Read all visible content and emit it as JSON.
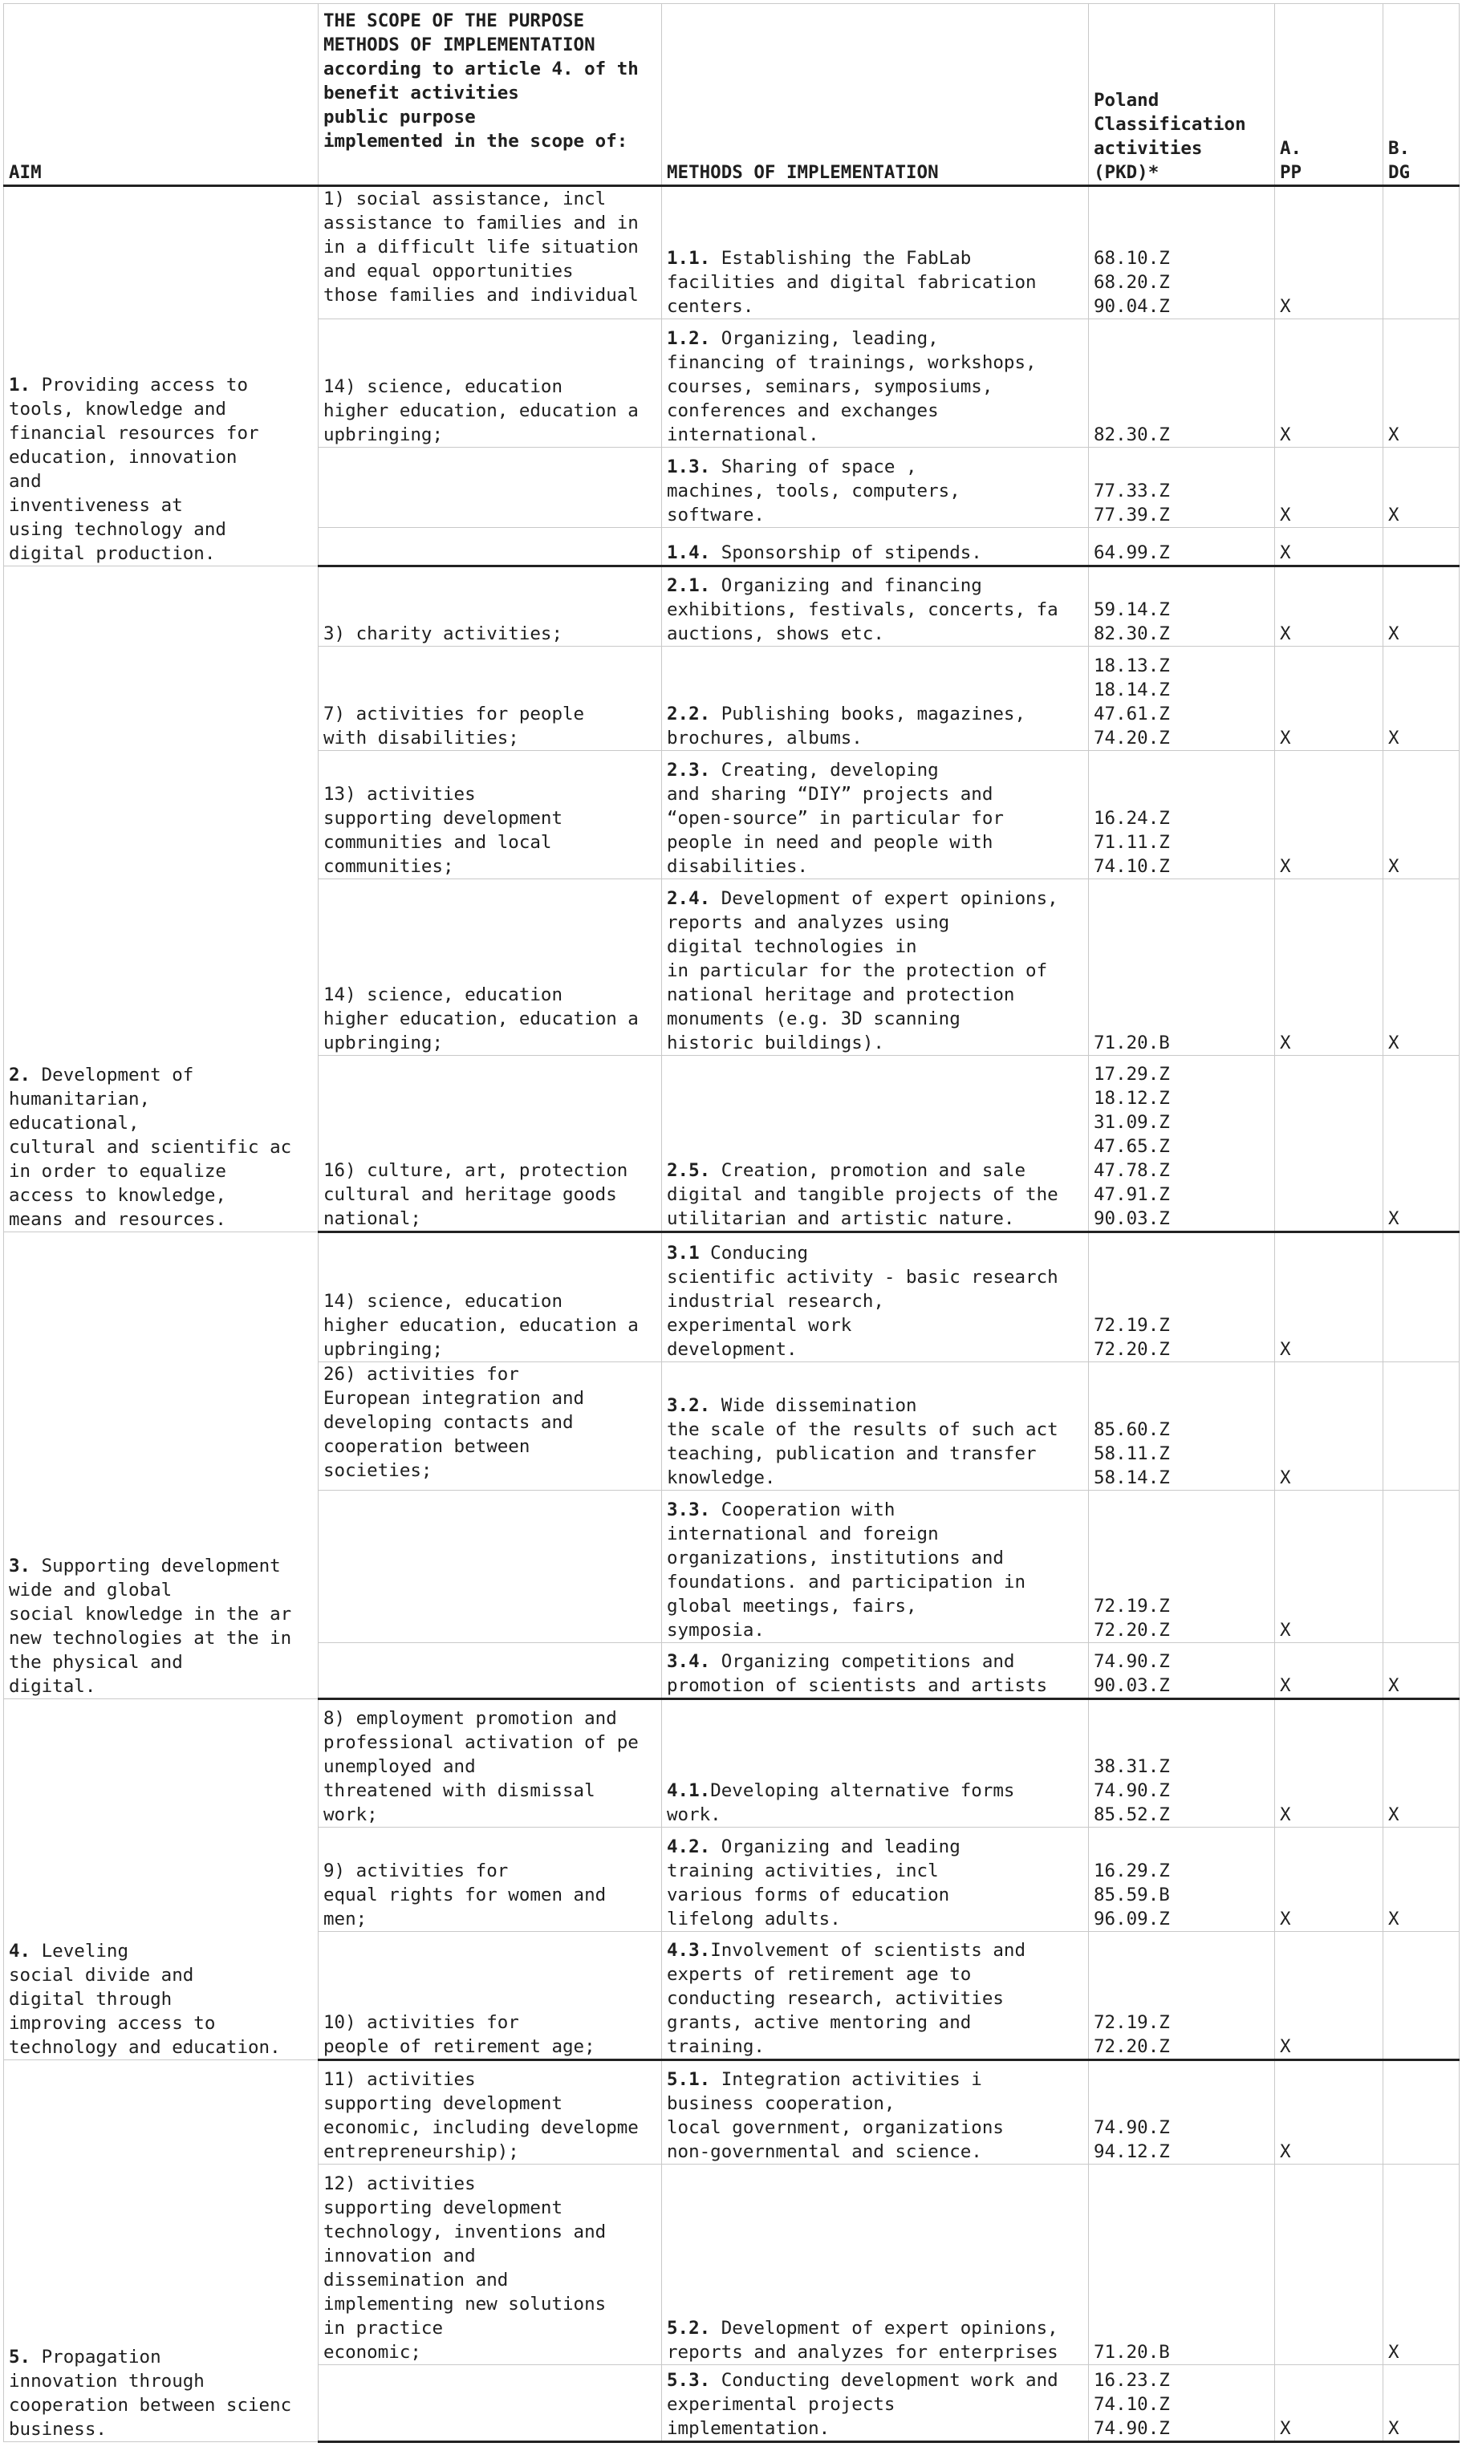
{
  "header": {
    "aim": "AIM",
    "scope": "THE SCOPE OF THE PURPOSE\nMETHODS OF IMPLEMENTATION\naccording to article 4. of th\nbenefit activities\npublic purpose\nimplemented in the scope of:",
    "methods": "METHODS OF IMPLEMENTATION",
    "pkd": "Poland\nClassification\nactivities\n(PKD)*",
    "pp": "A.\nPP",
    "dg": "B.\nDG"
  },
  "groups": [
    {
      "aim_num": "1.",
      "aim_text": " Providing access to\ntools, knowledge and\nfinancial resources for\neducation, innovation\nand\ninventiveness at\nusing technology and\ndigital production.",
      "rows": [
        {
          "scope": "1) social assistance, incl\nassistance to families and in\nin a difficult life situation\nand equal opportunities\nthose families and individual",
          "scope_top": true,
          "method_num": "1.1.",
          "method_text": " Establishing the FabLab\nfacilities and digital fabrication\ncenters.",
          "pkd": "68.10.Z\n68.20.Z\n90.04.Z",
          "pp": "X",
          "dg": ""
        },
        {
          "scope": "14) science, education\nhigher education, education a\nupbringing;",
          "method_num": "1.2.",
          "method_text": " Organizing, leading,\nfinancing of trainings, workshops,\ncourses, seminars, symposiums,\nconferences and exchanges\ninternational.",
          "pkd": "82.30.Z",
          "pp": "X",
          "dg": "X"
        },
        {
          "scope": "",
          "method_num": "1.3.",
          "method_text": " Sharing of space ,\nmachines, tools, computers,\nsoftware.",
          "pkd": "77.33.Z\n77.39.Z",
          "pp": "X",
          "dg": "X"
        },
        {
          "scope": "",
          "method_num": "1.4.",
          "method_text": " Sponsorship of stipends.",
          "pkd": "64.99.Z",
          "pp": "X",
          "dg": ""
        }
      ]
    },
    {
      "aim_num": "2.",
      "aim_text": " Development of\nhumanitarian,\neducational,\ncultural and scientific ac\nin order to equalize\naccess to knowledge,\nmeans and resources.",
      "rows": [
        {
          "scope": "3) charity activities;",
          "method_num": "2.1.",
          "method_text": " Organizing and financing\nexhibitions, festivals, concerts, fa\nauctions, shows etc.",
          "pkd": "59.14.Z\n82.30.Z",
          "pp": "X",
          "dg": "X"
        },
        {
          "scope": "7) activities for people\nwith disabilities;",
          "method_num": "2.2.",
          "method_text": " Publishing books, magazines,\nbrochures, albums.",
          "pkd": "18.13.Z\n18.14.Z\n47.61.Z\n74.20.Z",
          "pp": "X",
          "dg": "X"
        },
        {
          "scope": "13) activities\nsupporting development\ncommunities and local\ncommunities;",
          "method_num": "2.3.",
          "method_text": " Creating, developing\nand sharing “DIY” projects and\n“open-source” in particular for\npeople in need and people with\ndisabilities.",
          "pkd": "16.24.Z\n71.11.Z\n74.10.Z",
          "pp": "X",
          "dg": "X"
        },
        {
          "scope": "14) science, education\nhigher education, education a\nupbringing;",
          "method_num": "2.4.",
          "method_text": " Development of expert opinions,\nreports and analyzes using\ndigital technologies in\nin particular for the protection of\nnational heritage and protection\nmonuments (e.g. 3D scanning\nhistoric buildings).",
          "pkd": "71.20.B",
          "pp": "X",
          "dg": "X"
        },
        {
          "scope": "16) culture, art, protection\ncultural and heritage goods\nnational;",
          "method_num": "2.5.",
          "method_text": " Creation, promotion and sale\ndigital and tangible projects of the\nutilitarian and artistic nature.",
          "pkd": "17.29.Z\n18.12.Z\n31.09.Z\n47.65.Z\n47.78.Z\n47.91.Z\n90.03.Z",
          "pp": "",
          "dg": "X"
        }
      ]
    },
    {
      "aim_num": "3.",
      "aim_text": " Supporting development\nwide and global\nsocial knowledge in the ar\nnew technologies at the in\nthe physical and\ndigital.",
      "rows": [
        {
          "scope": "14) science, education\nhigher education, education a\nupbringing;",
          "method_num": "3.1",
          "method_text": " Conducing\nscientific activity - basic research\nindustrial research,\nexperimental work\ndevelopment.",
          "pkd": "72.19.Z\n72.20.Z",
          "pp": "X",
          "dg": ""
        },
        {
          "scope": "26) activities for\nEuropean integration and\ndeveloping contacts and\ncooperation between\nsocieties;",
          "scope_top": true,
          "method_num": "3.2.",
          "method_text": " Wide dissemination\nthe scale of the results of such act\nteaching, publication and transfer\nknowledge.",
          "pkd": "85.60.Z\n58.11.Z\n58.14.Z",
          "pp": "X",
          "dg": ""
        },
        {
          "scope": "",
          "method_num": "3.3.",
          "method_text": " Cooperation with\ninternational and foreign\norganizations, institutions and\nfoundations. and participation in\nglobal meetings, fairs,\nsymposia.",
          "pkd": "72.19.Z\n72.20.Z",
          "pp": "X",
          "dg": ""
        },
        {
          "scope": "",
          "method_num": "3.4.",
          "method_text": " Organizing competitions and\npromotion of scientists and artists",
          "pkd": "74.90.Z\n90.03.Z",
          "pp": "X",
          "dg": "X"
        }
      ]
    },
    {
      "aim_num": "4.",
      "aim_text": " Leveling\nsocial divide and\ndigital through\nimproving access to\ntechnology and education.",
      "rows": [
        {
          "scope": "8) employment promotion and\nprofessional activation of pe\nunemployed and\nthreatened with dismissal\nwork;",
          "method_num": "4.1.",
          "method_text": "Developing alternative forms\nwork.",
          "pkd": "38.31.Z\n74.90.Z\n85.52.Z",
          "pp": "X",
          "dg": "X"
        },
        {
          "scope": "9) activities for\nequal rights for women and\nmen;",
          "method_num": "4.2.",
          "method_text": " Organizing and leading\ntraining activities, incl\nvarious forms of education\nlifelong adults.",
          "pkd": "16.29.Z\n85.59.B\n96.09.Z",
          "pp": "X",
          "dg": "X"
        },
        {
          "scope": "10) activities for\npeople of retirement age;",
          "method_num": "4.3.",
          "method_text": "Involvement of scientists and\nexperts of retirement age to\nconducting research, activities\ngrants, active mentoring and\ntraining.",
          "pkd": "72.19.Z\n72.20.Z",
          "pp": "X",
          "dg": ""
        }
      ]
    },
    {
      "aim_num": "5.",
      "aim_text": " Propagation\ninnovation through\ncooperation between scienc\nbusiness.",
      "rows": [
        {
          "scope": "11) activities\nsupporting development\neconomic, including developme\nentrepreneurship);",
          "method_num": "5.1.",
          "method_text": " Integration activities i\nbusiness cooperation,\nlocal government, organizations\nnon-governmental and science.",
          "pkd": "74.90.Z\n94.12.Z",
          "pp": "X",
          "dg": ""
        },
        {
          "scope": "12) activities\nsupporting development\ntechnology, inventions and\ninnovation and\ndissemination and\nimplementing new solutions\nin practice\neconomic;",
          "method_num": "5.2.",
          "method_text": " Development of expert opinions,\nreports and analyzes for enterprises",
          "pkd": "71.20.B",
          "pp": "",
          "dg": "X"
        },
        {
          "scope": "",
          "method_num": "5.3.",
          "method_text": " Conducting development work and\nexperimental projects\nimplementation.",
          "pkd": "16.23.Z\n74.10.Z\n74.90.Z",
          "pp": "X",
          "dg": "X"
        }
      ]
    }
  ]
}
